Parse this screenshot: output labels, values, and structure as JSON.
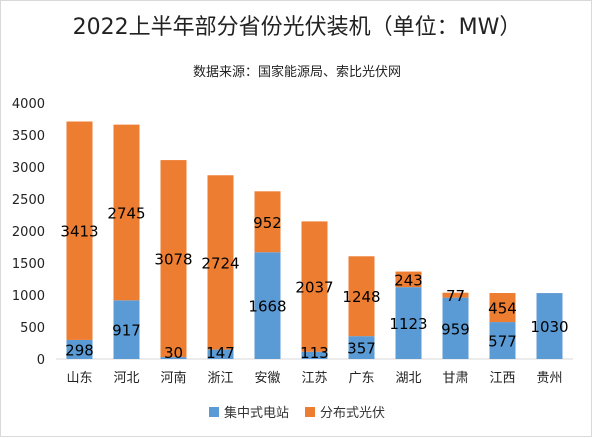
{
  "chart_data": {
    "type": "bar",
    "stacked": true,
    "title": "2022上半年部分省份光伏装机（单位：MW）",
    "subtitle": "数据来源：国家能源局、索比光伏网",
    "categories": [
      "山东",
      "河北",
      "河南",
      "浙江",
      "安徽",
      "江苏",
      "广东",
      "湖北",
      "甘肃",
      "江西",
      "贵州"
    ],
    "series": [
      {
        "name": "集中式电站",
        "color": "#5b9bd5",
        "values": [
          298,
          917,
          30,
          147,
          1668,
          113,
          357,
          1123,
          959,
          577,
          1030
        ]
      },
      {
        "name": "分布式光伏",
        "color": "#ed7d31",
        "values": [
          3413,
          2745,
          3078,
          2724,
          952,
          2037,
          1248,
          243,
          77,
          454,
          null
        ]
      }
    ],
    "ylim": [
      0,
      4000
    ],
    "yticks": [
      0,
      500,
      1000,
      1500,
      2000,
      2500,
      3000,
      3500,
      4000
    ],
    "grid": false,
    "legend_position": "bottom"
  }
}
